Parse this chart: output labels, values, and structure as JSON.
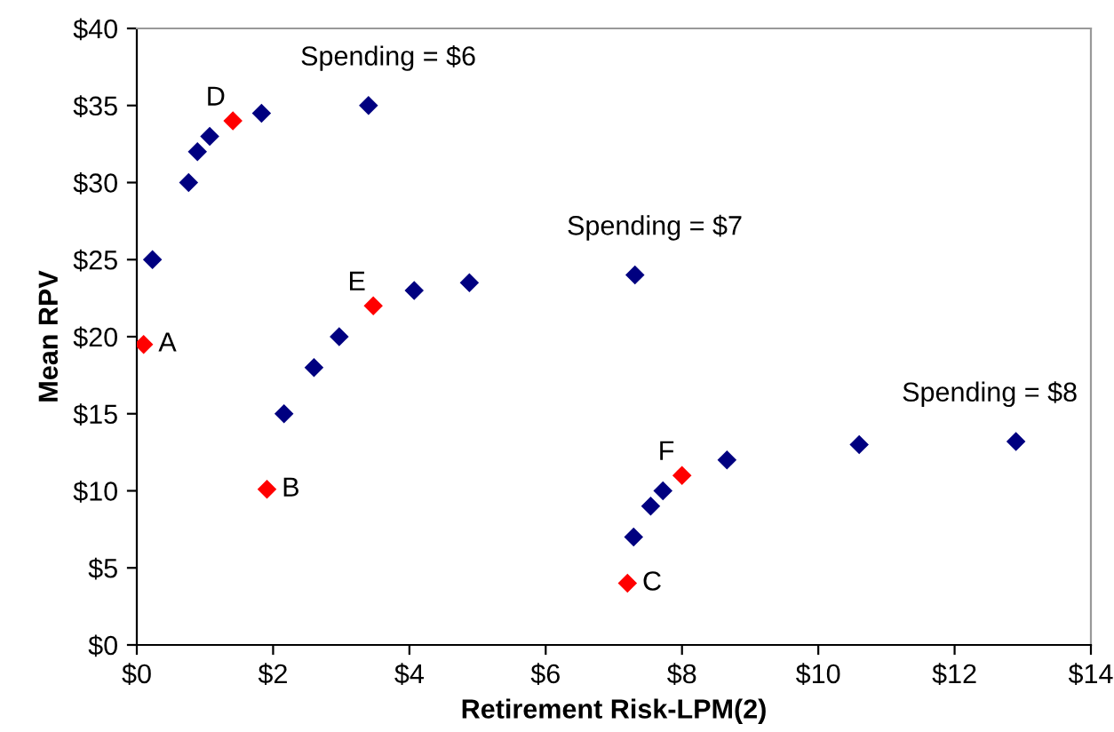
{
  "chart_data": {
    "type": "scatter",
    "xlabel": "Retirement Risk-LPM(2)",
    "ylabel": "Mean RPV",
    "marker": "diamond",
    "grid": false,
    "legend": false,
    "xlim": [
      0,
      14
    ],
    "ylim": [
      0,
      40
    ],
    "xticks": [
      {
        "value": 0,
        "label": "$0"
      },
      {
        "value": 2,
        "label": "$2"
      },
      {
        "value": 4,
        "label": "$4"
      },
      {
        "value": 6,
        "label": "$6"
      },
      {
        "value": 8,
        "label": "$8"
      },
      {
        "value": 10,
        "label": "$10"
      },
      {
        "value": 12,
        "label": "$12"
      },
      {
        "value": 14,
        "label": "$14"
      }
    ],
    "yticks": [
      {
        "value": 0,
        "label": "$0"
      },
      {
        "value": 5,
        "label": "$5"
      },
      {
        "value": 10,
        "label": "$10"
      },
      {
        "value": 15,
        "label": "$15"
      },
      {
        "value": 20,
        "label": "$20"
      },
      {
        "value": 25,
        "label": "$25"
      },
      {
        "value": 30,
        "label": "$30"
      },
      {
        "value": 35,
        "label": "$35"
      },
      {
        "value": 40,
        "label": "$40"
      }
    ],
    "series": [
      {
        "color": "#000080",
        "x": [
          0.23,
          0.76,
          0.89,
          1.07,
          1.83,
          3.4,
          2.16,
          2.6,
          2.97,
          4.07,
          4.88,
          7.31,
          7.29,
          7.54,
          7.72,
          8.66,
          10.6,
          12.9
        ],
        "values": [
          25,
          30,
          32,
          33,
          34.5,
          35,
          15,
          18,
          20,
          23,
          23.5,
          24,
          7,
          9,
          10,
          12,
          13,
          13.2
        ]
      },
      {
        "color": "#ff0000",
        "x": [
          0.1,
          1.91,
          7.2,
          1.41,
          3.47,
          8.0
        ],
        "values": [
          19.5,
          10.1,
          4,
          34,
          22,
          11
        ]
      }
    ],
    "annotations": [
      {
        "text": "Spending = $6",
        "x": 3.4,
        "y": 35
      },
      {
        "text": "Spending = $7",
        "x": 7.31,
        "y": 24
      },
      {
        "text": "Spending = $8",
        "x": 12.9,
        "y": 13.2
      },
      {
        "text": "A",
        "x": 0.1,
        "y": 19.5
      },
      {
        "text": "B",
        "x": 1.91,
        "y": 10.1
      },
      {
        "text": "C",
        "x": 7.2,
        "y": 4
      },
      {
        "text": "D",
        "x": 1.41,
        "y": 34
      },
      {
        "text": "E",
        "x": 3.47,
        "y": 22
      },
      {
        "text": "F",
        "x": 8.0,
        "y": 11
      }
    ]
  }
}
